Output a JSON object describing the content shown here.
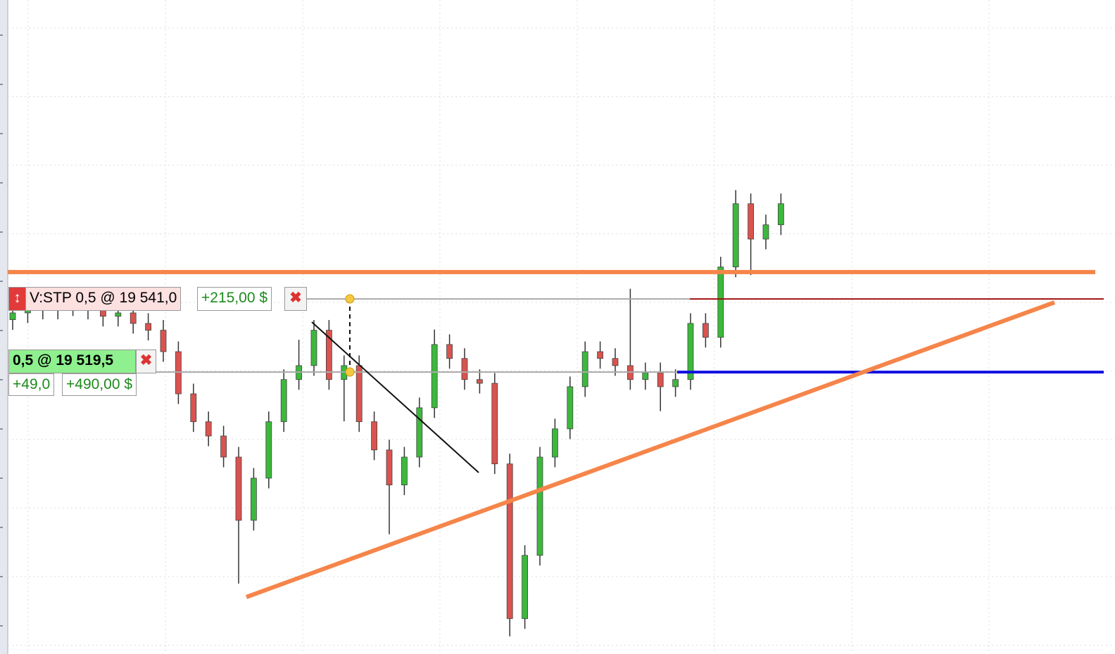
{
  "chart_data": {
    "type": "candlestick",
    "ylim": [
      19436.6,
      19628.9
    ],
    "open": [
      19534.9,
      19536.9,
      19540.0,
      19538.0,
      19541.0,
      19539.0,
      19538.0,
      19535.9,
      19536.9,
      19533.8,
      19531.8,
      19525.5,
      19513.1,
      19504.9,
      19500.7,
      19494.5,
      19475.9,
      19488.3,
      19504.9,
      19517.3,
      19521.4,
      19531.8,
      19517.3,
      19521.4,
      19504.9,
      19496.6,
      19486.3,
      19494.5,
      19509.0,
      19527.6,
      19523.5,
      19517.3,
      19516.2,
      19492.5,
      19447.0,
      19465.6,
      19494.5,
      19502.8,
      19515.2,
      19525.5,
      19523.5,
      19521.4,
      19517.3,
      19519.3,
      19515.2,
      19517.3,
      19533.8,
      19529.7,
      19550.4,
      19569.0,
      19558.6,
      19562.8
    ],
    "high": [
      19539.9,
      19543.0,
      19543.0,
      19544.0,
      19544.0,
      19542.0,
      19541.0,
      19539.9,
      19539.9,
      19536.8,
      19534.8,
      19528.5,
      19516.1,
      19507.9,
      19503.7,
      19497.5,
      19491.3,
      19507.9,
      19520.3,
      19529.0,
      19534.8,
      19534.8,
      19524.4,
      19524.4,
      19507.9,
      19499.6,
      19497.5,
      19512.0,
      19532.0,
      19530.6,
      19526.5,
      19520.3,
      19519.2,
      19495.5,
      19468.6,
      19497.5,
      19505.8,
      19518.2,
      19528.5,
      19528.5,
      19526.5,
      19544.0,
      19522.3,
      19522.3,
      19520.3,
      19536.8,
      19536.8,
      19553.4,
      19573.0,
      19572.0,
      19565.8,
      19572.0
    ],
    "low": [
      19531.9,
      19533.9,
      19535.0,
      19535.0,
      19536.0,
      19535.0,
      19532.9,
      19532.9,
      19530.8,
      19528.8,
      19522.5,
      19510.1,
      19501.9,
      19497.7,
      19491.5,
      19457.3,
      19472.9,
      19485.3,
      19501.9,
      19514.3,
      19518.4,
      19514.3,
      19505.0,
      19501.9,
      19493.6,
      19471.8,
      19483.3,
      19491.5,
      19506.0,
      19520.5,
      19514.3,
      19513.2,
      19489.5,
      19441.8,
      19444.0,
      19462.6,
      19491.5,
      19499.8,
      19512.2,
      19520.5,
      19518.4,
      19514.3,
      19514.3,
      19508.0,
      19512.2,
      19514.3,
      19526.7,
      19526.7,
      19547.4,
      19548.0,
      19555.6,
      19559.8
    ],
    "close": [
      19536.9,
      19540.0,
      19538.0,
      19541.0,
      19539.0,
      19538.0,
      19535.9,
      19536.9,
      19533.8,
      19531.8,
      19525.5,
      19513.1,
      19504.9,
      19500.7,
      19494.5,
      19475.9,
      19488.3,
      19504.9,
      19517.3,
      19521.4,
      19531.8,
      19517.3,
      19521.4,
      19504.9,
      19496.6,
      19486.3,
      19494.5,
      19509.0,
      19527.6,
      19523.5,
      19517.3,
      19516.2,
      19492.5,
      19447.0,
      19465.6,
      19494.5,
      19502.8,
      19515.2,
      19525.5,
      19523.5,
      19521.4,
      19517.3,
      19519.3,
      19515.2,
      19517.3,
      19533.8,
      19529.7,
      19550.4,
      19569.0,
      19558.6,
      19562.8,
      19569.0
    ],
    "up_color": "#3cb83c",
    "down_color": "#d9534f",
    "levels": [
      {
        "price": 19548.9,
        "color": "#f5854a"
      }
    ],
    "orders": [
      {
        "label": "V:STP 0,5 @ 19 541,0",
        "pnl": "+215,00 $",
        "price": 19541.0
      },
      {
        "label": "0,5 @ 19 519,5",
        "points": "+49,0",
        "pnl": "+490,00 $",
        "price": 19519.5
      }
    ]
  }
}
